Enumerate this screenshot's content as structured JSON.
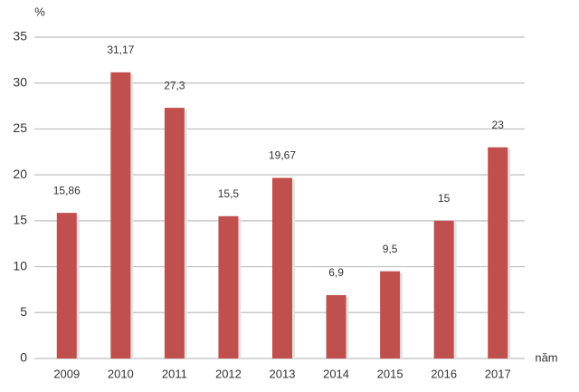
{
  "chart_data": {
    "type": "bar",
    "y_label": "%",
    "x_label": "năm",
    "categories": [
      "2009",
      "2010",
      "2011",
      "2012",
      "2013",
      "2014",
      "2015",
      "2016",
      "2017"
    ],
    "values": [
      15.86,
      31.17,
      27.3,
      15.5,
      19.67,
      6.9,
      9.5,
      15,
      23
    ],
    "value_labels": [
      "15,86",
      "31,17",
      "27,3",
      "15,5",
      "19,67",
      "6,9",
      "9,5",
      "15",
      "23"
    ],
    "color": "#c0504d",
    "ylim": [
      0,
      35
    ],
    "yticks": [
      0,
      5,
      10,
      15,
      20,
      25,
      30,
      35
    ],
    "grid": true
  }
}
